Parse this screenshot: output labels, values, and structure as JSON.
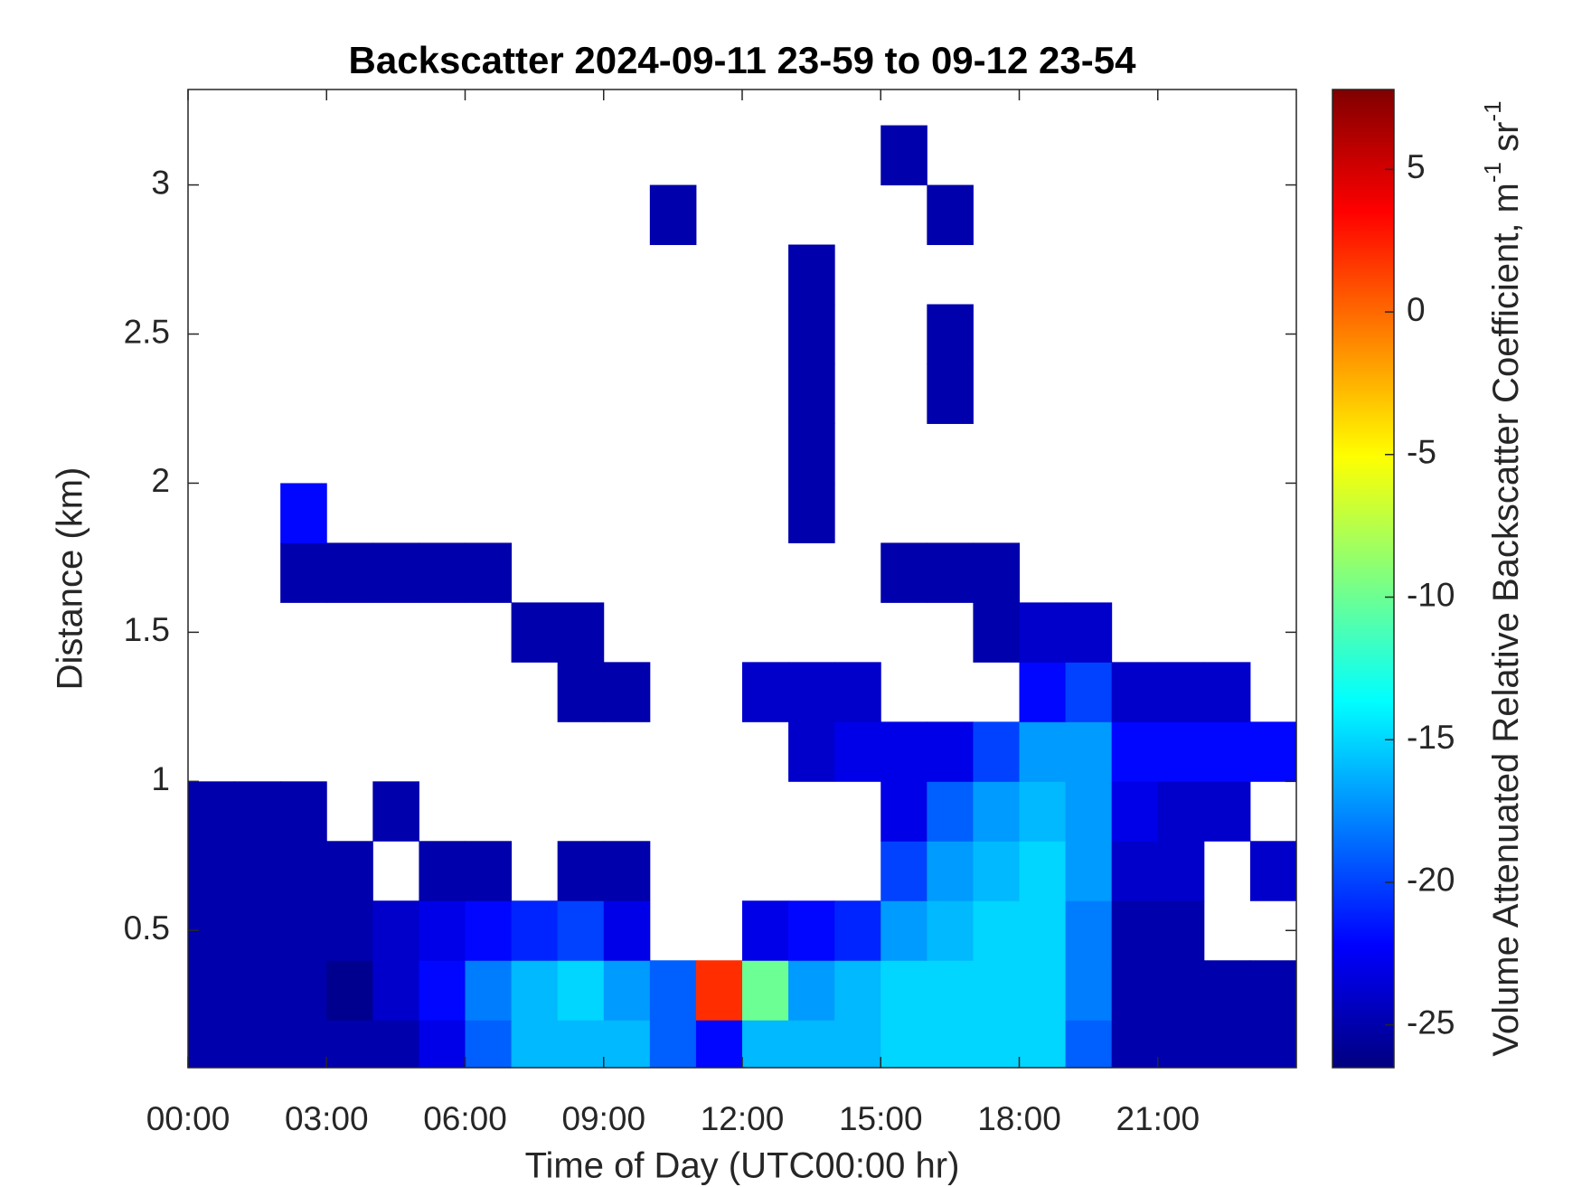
{
  "chart_data": {
    "type": "heatmap",
    "title": "Backscatter 2024-09-11 23-59 to 09-12 23-54",
    "x_label": "Time of Day (UTC00:00 hr)",
    "y_label": "Distance (km)",
    "colorbar_label": [
      "Volume Attenuated Relative Backscatter Coefficient, m",
      "-1",
      " sr",
      "-1"
    ],
    "colormap": "jet",
    "clim": [
      -26.5,
      7.8
    ],
    "cticks": [
      5,
      0,
      -5,
      -10,
      -15,
      -20,
      -25
    ],
    "xlim": [
      0,
      24
    ],
    "xticks": [
      {
        "value": 0,
        "label": "00:00"
      },
      {
        "value": 3,
        "label": "03:00"
      },
      {
        "value": 6,
        "label": "06:00"
      },
      {
        "value": 9,
        "label": "09:00"
      },
      {
        "value": 12,
        "label": "12:00"
      },
      {
        "value": 15,
        "label": "15:00"
      },
      {
        "value": 18,
        "label": "18:00"
      },
      {
        "value": 21,
        "label": "21:00"
      }
    ],
    "ylim": [
      0.04,
      3.32
    ],
    "yticks": [
      0.5,
      1,
      1.5,
      2,
      2.5,
      3
    ],
    "x": [
      0.5,
      1.5,
      2.5,
      3.5,
      4.5,
      5.5,
      6.5,
      7.5,
      8.5,
      9.5,
      10.5,
      11.5,
      12.5,
      13.5,
      14.5,
      15.5,
      16.5,
      17.5,
      18.5,
      19.5,
      20.5,
      21.5,
      22.5,
      23.5
    ],
    "y": [
      0.1,
      0.3,
      0.5,
      0.7,
      0.9,
      1.1,
      1.3,
      1.5,
      1.7,
      1.9,
      2.1,
      2.3,
      2.5,
      2.7,
      2.9,
      3.1,
      3.3
    ],
    "values": [
      [
        -25,
        -25,
        -25,
        -25,
        -25,
        -23,
        -19,
        -16,
        -16,
        -16,
        -19,
        -22,
        -16,
        -16,
        -16,
        -15,
        -15,
        -15,
        -15,
        -19,
        -25,
        -25,
        -25,
        -25
      ],
      [
        -25,
        -25,
        -25,
        -26,
        -24,
        -22,
        -18,
        -16,
        -15,
        -17,
        -19,
        2,
        -10,
        -17,
        -16,
        -15,
        -15,
        -15,
        -15,
        -18,
        -25,
        -25,
        -25,
        -25
      ],
      [
        -25,
        -25,
        -25,
        -25,
        -24,
        -23,
        -22,
        -21,
        -20,
        -23,
        null,
        null,
        -23,
        -22,
        -21,
        -17,
        -16,
        -15,
        -15,
        -18,
        -25,
        -25,
        null,
        null
      ],
      [
        -25,
        -25,
        -25,
        -25,
        null,
        -25,
        -25,
        null,
        -25,
        -25,
        null,
        null,
        null,
        null,
        null,
        -20,
        -17,
        -16,
        -15,
        -17,
        -24,
        -24,
        null,
        -24
      ],
      [
        -25,
        -25,
        -25,
        null,
        -25,
        null,
        null,
        null,
        null,
        null,
        null,
        null,
        null,
        null,
        null,
        -23,
        -19,
        -17,
        -16,
        -17,
        -23,
        -24,
        -24,
        null
      ],
      [
        null,
        null,
        null,
        null,
        null,
        null,
        null,
        null,
        null,
        null,
        null,
        null,
        null,
        -24,
        -23,
        -23,
        -23,
        -20,
        -17,
        -17,
        -22,
        -22,
        -22,
        -22
      ],
      [
        null,
        null,
        null,
        null,
        null,
        null,
        null,
        null,
        -25,
        -25,
        null,
        null,
        -24,
        -24,
        -24,
        null,
        null,
        null,
        -22,
        -20,
        -24,
        -24,
        -24,
        null
      ],
      [
        null,
        null,
        null,
        null,
        null,
        null,
        null,
        -25,
        -25,
        null,
        null,
        null,
        null,
        null,
        null,
        null,
        null,
        -25,
        -24,
        -24,
        null,
        null,
        null,
        null
      ],
      [
        null,
        null,
        -25,
        -25,
        -25,
        -25,
        -25,
        null,
        null,
        null,
        null,
        null,
        null,
        null,
        null,
        -25,
        -25,
        -25,
        null,
        null,
        null,
        null,
        null,
        null
      ],
      [
        null,
        null,
        -22,
        null,
        null,
        null,
        null,
        null,
        null,
        null,
        null,
        null,
        null,
        -25,
        null,
        null,
        null,
        null,
        null,
        null,
        null,
        null,
        null,
        null
      ],
      [
        null,
        null,
        null,
        null,
        null,
        null,
        null,
        null,
        null,
        null,
        null,
        null,
        null,
        -25,
        null,
        null,
        null,
        null,
        null,
        null,
        null,
        null,
        null,
        null
      ],
      [
        null,
        null,
        null,
        null,
        null,
        null,
        null,
        null,
        null,
        null,
        null,
        null,
        null,
        -25,
        null,
        null,
        -25,
        null,
        null,
        null,
        null,
        null,
        null,
        null
      ],
      [
        null,
        null,
        null,
        null,
        null,
        null,
        null,
        null,
        null,
        null,
        null,
        null,
        null,
        -25,
        null,
        null,
        -25,
        null,
        null,
        null,
        null,
        null,
        null,
        null
      ],
      [
        null,
        null,
        null,
        null,
        null,
        null,
        null,
        null,
        null,
        null,
        null,
        null,
        null,
        -25,
        null,
        null,
        null,
        null,
        null,
        null,
        null,
        null,
        null,
        null
      ],
      [
        null,
        null,
        null,
        null,
        null,
        null,
        null,
        null,
        null,
        null,
        -25,
        null,
        null,
        null,
        null,
        null,
        -25,
        null,
        null,
        null,
        null,
        null,
        null,
        null
      ],
      [
        null,
        null,
        null,
        null,
        null,
        null,
        null,
        null,
        null,
        null,
        null,
        null,
        null,
        null,
        null,
        -25,
        null,
        null,
        null,
        null,
        null,
        null,
        null,
        null
      ],
      [
        null,
        null,
        null,
        null,
        null,
        null,
        null,
        null,
        null,
        null,
        null,
        null,
        null,
        null,
        null,
        null,
        null,
        null,
        null,
        null,
        null,
        null,
        null,
        null
      ]
    ]
  }
}
